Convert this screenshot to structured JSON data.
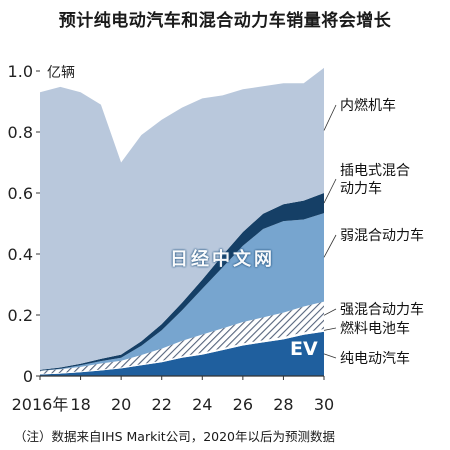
{
  "title": "预计纯电动汽车和混合动力车销量将会增长",
  "note": "（注）数据来自IHS Markit公司，2020年以后为预测数据",
  "watermark": "日经中文网",
  "chart_data": {
    "type": "area",
    "stacked": true,
    "unit_label": "亿辆",
    "x_tick_labels": [
      "2016年",
      "18",
      "20",
      "22",
      "24",
      "26",
      "28",
      "30"
    ],
    "x_ticks": [
      2016,
      2018,
      2020,
      2022,
      2024,
      2026,
      2028,
      2030
    ],
    "y_tick_labels": [
      "0",
      "0.2",
      "0.4",
      "0.6",
      "0.8",
      "1.0"
    ],
    "y_ticks": [
      0,
      0.2,
      0.4,
      0.6,
      0.8,
      1.0
    ],
    "xlim": [
      2016,
      2030
    ],
    "ylim": [
      0,
      1.0
    ],
    "x": [
      2016,
      2017,
      2018,
      2019,
      2020,
      2021,
      2022,
      2023,
      2024,
      2025,
      2026,
      2027,
      2028,
      2029,
      2030
    ],
    "series": [
      {
        "name": "纯电动汽车",
        "inline_label": "EV",
        "color": "#1f5f9e",
        "values": [
          0.005,
          0.008,
          0.012,
          0.018,
          0.025,
          0.035,
          0.045,
          0.06,
          0.07,
          0.085,
          0.1,
          0.11,
          0.12,
          0.135,
          0.145
        ]
      },
      {
        "name": "燃料电池车",
        "color": "#ffffff",
        "values": [
          0.002,
          0.002,
          0.003,
          0.003,
          0.003,
          0.004,
          0.005,
          0.005,
          0.006,
          0.006,
          0.007,
          0.007,
          0.008,
          0.008,
          0.009
        ]
      },
      {
        "name": "强混合动力车",
        "color": "#5a6e8c",
        "pattern": "hatch",
        "values": [
          0.01,
          0.012,
          0.015,
          0.02,
          0.022,
          0.03,
          0.04,
          0.05,
          0.06,
          0.065,
          0.07,
          0.075,
          0.08,
          0.085,
          0.09
        ]
      },
      {
        "name": "弱混合动力车",
        "color": "#77a5cf",
        "values": [
          0.0,
          0.002,
          0.005,
          0.008,
          0.01,
          0.03,
          0.06,
          0.1,
          0.15,
          0.2,
          0.25,
          0.29,
          0.3,
          0.285,
          0.29
        ]
      },
      {
        "name": "插电式混合动力车",
        "label_lines": [
          "插电式混合",
          "动力车"
        ],
        "color": "#153f66",
        "values": [
          0.003,
          0.004,
          0.005,
          0.007,
          0.01,
          0.015,
          0.02,
          0.025,
          0.03,
          0.04,
          0.045,
          0.05,
          0.055,
          0.062,
          0.066
        ]
      },
      {
        "name": "内燃机车",
        "color": "#b9c8dc",
        "values": [
          0.91,
          0.92,
          0.89,
          0.834,
          0.63,
          0.676,
          0.67,
          0.64,
          0.594,
          0.524,
          0.468,
          0.418,
          0.397,
          0.385,
          0.41
        ]
      }
    ]
  }
}
